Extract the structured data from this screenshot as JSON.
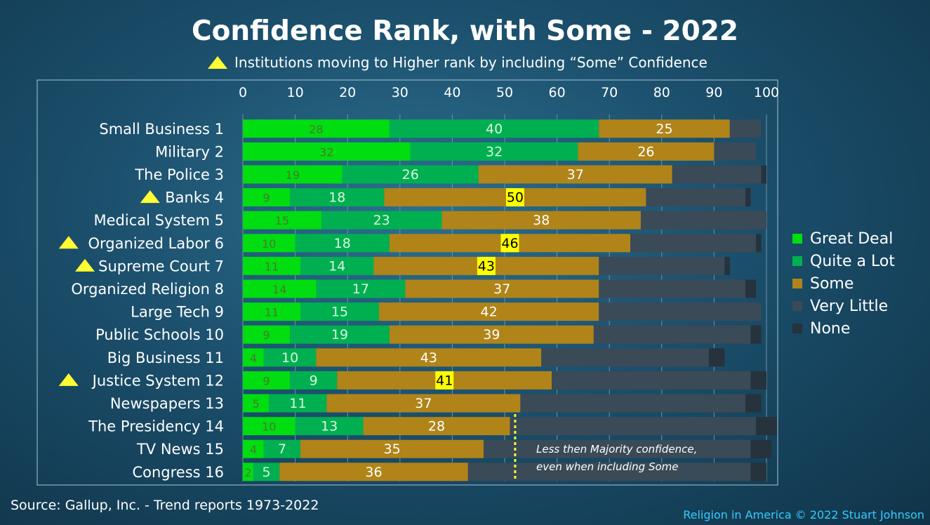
{
  "chart_data": {
    "type": "bar",
    "orientation": "horizontal",
    "stacked": true,
    "title": "Confidence Rank, with Some - 2022",
    "subtitle": "Institutions moving to Higher rank by including “Some” Confidence",
    "x_ticks": [
      "0",
      "10",
      "20",
      "30",
      "40",
      "50",
      "60",
      "70",
      "80",
      "90",
      "100"
    ],
    "xlim": [
      0,
      100
    ],
    "grid": true,
    "legend_position": "right",
    "categories": [
      {
        "label": "Small Business 1",
        "marker": false
      },
      {
        "label": "Military 2",
        "marker": false
      },
      {
        "label": "The Police 3",
        "marker": false
      },
      {
        "label": "Banks 4",
        "marker": true
      },
      {
        "label": "Medical System 5",
        "marker": false
      },
      {
        "label": "Organized Labor 6",
        "marker": true
      },
      {
        "label": "Supreme Court 7",
        "marker": true
      },
      {
        "label": "Organized Religion 8",
        "marker": false
      },
      {
        "label": "Large Tech 9",
        "marker": false
      },
      {
        "label": "Public Schools 10",
        "marker": false
      },
      {
        "label": "Big Business 11",
        "marker": false
      },
      {
        "label": "Justice System 12",
        "marker": true
      },
      {
        "label": "Newspapers 13",
        "marker": false
      },
      {
        "label": "The Presidency 14",
        "marker": false
      },
      {
        "label": "TV News 15",
        "marker": false
      },
      {
        "label": "Congress 16",
        "marker": false
      }
    ],
    "series": [
      {
        "name": "Great Deal",
        "color": "#00dd11",
        "label_color": "#4a7a2a",
        "values": [
          28,
          32,
          19,
          9,
          15,
          10,
          11,
          14,
          11,
          9,
          4,
          9,
          5,
          10,
          4,
          2
        ]
      },
      {
        "name": "Quite a Lot",
        "color": "#00b050",
        "label_color": "#d8f5e0",
        "values": [
          40,
          32,
          26,
          18,
          23,
          18,
          14,
          17,
          15,
          19,
          10,
          9,
          11,
          13,
          7,
          5
        ]
      },
      {
        "name": "Some",
        "color": "#b08419",
        "label_color": "#ffffff",
        "values": [
          25,
          26,
          37,
          50,
          38,
          46,
          43,
          37,
          42,
          39,
          43,
          41,
          37,
          28,
          35,
          36
        ]
      },
      {
        "name": "Very Little",
        "color": "#3a4a57",
        "label_color": "",
        "values": [
          6,
          8,
          17,
          19,
          24,
          24,
          24,
          28,
          31,
          30,
          32,
          38,
          43,
          47,
          51,
          54
        ]
      },
      {
        "name": "None",
        "color": "#26323c",
        "label_color": "",
        "values": [
          0,
          0,
          1,
          1,
          0,
          1,
          1,
          2,
          0,
          2,
          3,
          3,
          3,
          4,
          4,
          3
        ]
      }
    ],
    "highlight_color": "#ffff00",
    "threshold_line": {
      "value": 52,
      "color": "#ffff33"
    },
    "annotation": [
      "Less then Majority confidence,",
      "even when including Some"
    ]
  },
  "footer": {
    "source": "Source: Gallup, Inc. - Trend reports 1973-2022",
    "credit": "Religion in America © 2022 Stuart Johnson"
  }
}
